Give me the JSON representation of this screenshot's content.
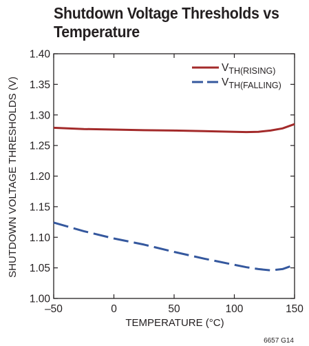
{
  "chart_data": {
    "type": "line",
    "title": [
      "Shutdown Voltage Thresholds vs",
      "Temperature"
    ],
    "xlabel": "TEMPERATURE (°C)",
    "ylabel": "SHUTDOWN VOLTAGE THRESHOLDS (V)",
    "xlim": [
      -50,
      150
    ],
    "ylim": [
      1.0,
      1.4
    ],
    "x_ticks": [
      -50,
      0,
      50,
      100,
      150
    ],
    "x_tick_labels": [
      "–50",
      "0",
      "50",
      "100",
      "150"
    ],
    "y_ticks": [
      1.0,
      1.05,
      1.1,
      1.15,
      1.2,
      1.25,
      1.3,
      1.35,
      1.4
    ],
    "y_tick_labels": [
      "1.00",
      "1.05",
      "1.10",
      "1.15",
      "1.20",
      "1.25",
      "1.30",
      "1.35",
      "1.40"
    ],
    "grid": false,
    "legend_position": "top-right",
    "series": [
      {
        "name_main": "V",
        "name_sub": "TH(RISING)",
        "color": "#a32a2a",
        "style": "solid",
        "x": [
          -50,
          -25,
          0,
          25,
          50,
          75,
          100,
          110,
          120,
          130,
          140,
          150
        ],
        "y": [
          1.279,
          1.277,
          1.276,
          1.275,
          1.2745,
          1.2735,
          1.2725,
          1.272,
          1.2725,
          1.2745,
          1.278,
          1.285
        ]
      },
      {
        "name_main": "V",
        "name_sub": "TH(FALLING)",
        "color": "#35589e",
        "style": "dashed",
        "x": [
          -50,
          -25,
          0,
          25,
          50,
          75,
          100,
          110,
          120,
          130,
          140,
          150
        ],
        "y": [
          1.124,
          1.11,
          1.098,
          1.088,
          1.076,
          1.065,
          1.055,
          1.051,
          1.048,
          1.046,
          1.048,
          1.055
        ]
      }
    ]
  },
  "figure_id": "6657 G14"
}
